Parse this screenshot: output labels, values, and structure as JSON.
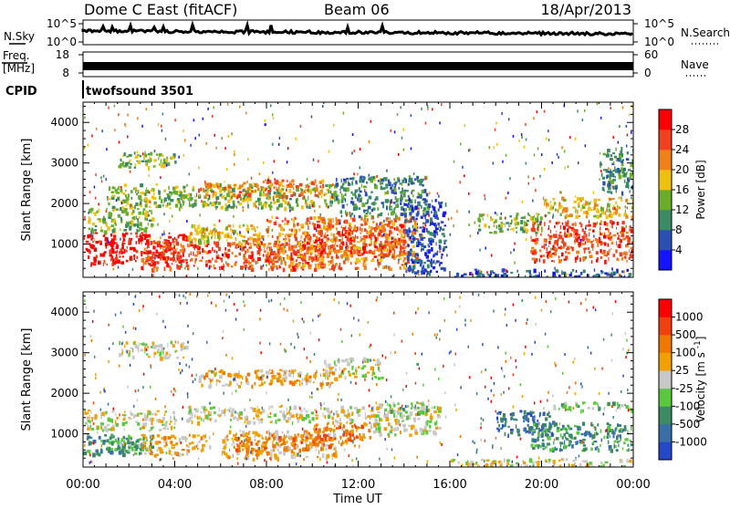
{
  "header": {
    "title": "Dome C East (fitACF)",
    "beam": "Beam 06",
    "date": "18/Apr/2013"
  },
  "nsky_panel": {
    "left_label": "N.Sky",
    "right_label": "N.Search",
    "left_ticks": [
      "10^5",
      "10^0"
    ],
    "right_ticks": [
      "10^5",
      "10^0"
    ]
  },
  "freq_panel": {
    "left_label_1": "Freq.",
    "left_label_2": "[MHz]",
    "right_label": "Nave",
    "left_ticks": [
      "18",
      "8"
    ],
    "right_ticks": [
      "60",
      "0"
    ]
  },
  "cpid": {
    "label": "CPID",
    "value": "twofsound 3501"
  },
  "chart_data": [
    {
      "type": "heatmap",
      "quantity": "Power",
      "ylabel": "Slant Range [km]",
      "xlabel": "",
      "x_range_hours": [
        0,
        24
      ],
      "ylim": [
        180,
        4500
      ],
      "y_ticks": [
        1000,
        2000,
        3000,
        4000
      ],
      "colorbar_label": "Power [dB]",
      "colorbar_ticks": [
        "4",
        "8",
        "12",
        "16",
        "20",
        "24",
        "28"
      ],
      "colorbar_colors": [
        "#1414ff",
        "#2b50b4",
        "#3a8a64",
        "#6aac2c",
        "#f0c010",
        "#f08018",
        "#f04020",
        "#ff0000"
      ],
      "regions": [
        {
          "t0": 0.0,
          "t1": 4.5,
          "r0": 500,
          "r1": 1300,
          "level": 7
        },
        {
          "t0": 2.5,
          "t1": 10.5,
          "r0": 400,
          "r1": 1100,
          "level": 6
        },
        {
          "t0": 4.5,
          "t1": 8.0,
          "r0": 1000,
          "r1": 1500,
          "level": 4
        },
        {
          "t0": 8.0,
          "t1": 14.5,
          "r0": 400,
          "r1": 1700,
          "level": 5
        },
        {
          "t0": 10.0,
          "t1": 14.0,
          "r0": 700,
          "r1": 1500,
          "level": 6
        },
        {
          "t0": 0.2,
          "t1": 3.0,
          "r0": 1300,
          "r1": 1900,
          "level": 3
        },
        {
          "t0": 1.0,
          "t1": 11.0,
          "r0": 1900,
          "r1": 2500,
          "level": 3
        },
        {
          "t0": 5.0,
          "t1": 10.5,
          "r0": 2200,
          "r1": 2600,
          "level": 5
        },
        {
          "t0": 1.5,
          "t1": 4.0,
          "r0": 2900,
          "r1": 3300,
          "level": 3
        },
        {
          "t0": 11.0,
          "t1": 15.0,
          "r0": 1700,
          "r1": 2700,
          "level": 2
        },
        {
          "t0": 14.0,
          "t1": 15.8,
          "r0": 300,
          "r1": 2200,
          "level": 1
        },
        {
          "t0": 16.0,
          "t1": 24.0,
          "r0": 200,
          "r1": 400,
          "level": 1
        },
        {
          "t0": 17.2,
          "t1": 20.0,
          "r0": 1300,
          "r1": 1800,
          "level": 3
        },
        {
          "t0": 19.5,
          "t1": 24.0,
          "r0": 600,
          "r1": 1600,
          "level": 6
        },
        {
          "t0": 20.0,
          "t1": 24.0,
          "r0": 1700,
          "r1": 2200,
          "level": 4
        },
        {
          "t0": 22.5,
          "t1": 24.0,
          "r0": 2300,
          "r1": 3400,
          "level": 2
        }
      ]
    },
    {
      "type": "heatmap",
      "quantity": "Velocity",
      "ylabel": "Slant Range [km]",
      "xlabel": "Time UT",
      "x_range_hours": [
        0,
        24
      ],
      "x_ticks": [
        "00:00",
        "04:00",
        "08:00",
        "12:00",
        "16:00",
        "20:00",
        "00:00"
      ],
      "ylim": [
        180,
        4500
      ],
      "y_ticks": [
        1000,
        2000,
        3000,
        4000
      ],
      "colorbar_label": "Velocity [m s^-1]",
      "colorbar_ticks": [
        "1000",
        "500",
        "100",
        "25",
        "-25",
        "-100",
        "-500",
        "-1000"
      ],
      "colorbar_colors": [
        "#2448c8",
        "#3a6ea8",
        "#3a8a64",
        "#5ac83c",
        "#c8c8c8",
        "#f0a000",
        "#f07800",
        "#f04010",
        "#ff0000"
      ],
      "regions": [
        {
          "t0": 0.0,
          "t1": 4.0,
          "r0": 1100,
          "r1": 1600,
          "level": 4
        },
        {
          "t0": 0.0,
          "t1": 3.0,
          "r0": 500,
          "r1": 1000,
          "level": 2
        },
        {
          "t0": 1.2,
          "t1": 3.0,
          "r0": 600,
          "r1": 900,
          "level": 3
        },
        {
          "t0": 2.5,
          "t1": 5.5,
          "r0": 500,
          "r1": 1000,
          "level": 5
        },
        {
          "t0": 4.5,
          "t1": 12.5,
          "r0": 1300,
          "r1": 1700,
          "level": 4
        },
        {
          "t0": 6.0,
          "t1": 11.0,
          "r0": 400,
          "r1": 1100,
          "level": 5
        },
        {
          "t0": 6.5,
          "t1": 10.5,
          "r0": 600,
          "r1": 1000,
          "level": 6
        },
        {
          "t0": 10.0,
          "t1": 12.5,
          "r0": 700,
          "r1": 1300,
          "level": 6
        },
        {
          "t0": 5.0,
          "t1": 11.0,
          "r0": 2200,
          "r1": 2600,
          "level": 5
        },
        {
          "t0": 1.5,
          "t1": 4.5,
          "r0": 2900,
          "r1": 3300,
          "level": 4
        },
        {
          "t0": 10.5,
          "t1": 13.0,
          "r0": 2400,
          "r1": 2900,
          "level": 4
        },
        {
          "t0": 12.5,
          "t1": 15.5,
          "r0": 1000,
          "r1": 1800,
          "level": 4
        },
        {
          "t0": 13.0,
          "t1": 15.0,
          "r0": 1500,
          "r1": 1800,
          "level": 3
        },
        {
          "t0": 18.0,
          "t1": 20.5,
          "r0": 1000,
          "r1": 1600,
          "level": 1
        },
        {
          "t0": 19.5,
          "t1": 24.0,
          "r0": 600,
          "r1": 1300,
          "level": 2
        },
        {
          "t0": 20.5,
          "t1": 24.0,
          "r0": 1600,
          "r1": 1800,
          "level": 3
        },
        {
          "t0": 16.0,
          "t1": 24.0,
          "r0": 200,
          "r1": 400,
          "level": 4
        }
      ]
    }
  ]
}
